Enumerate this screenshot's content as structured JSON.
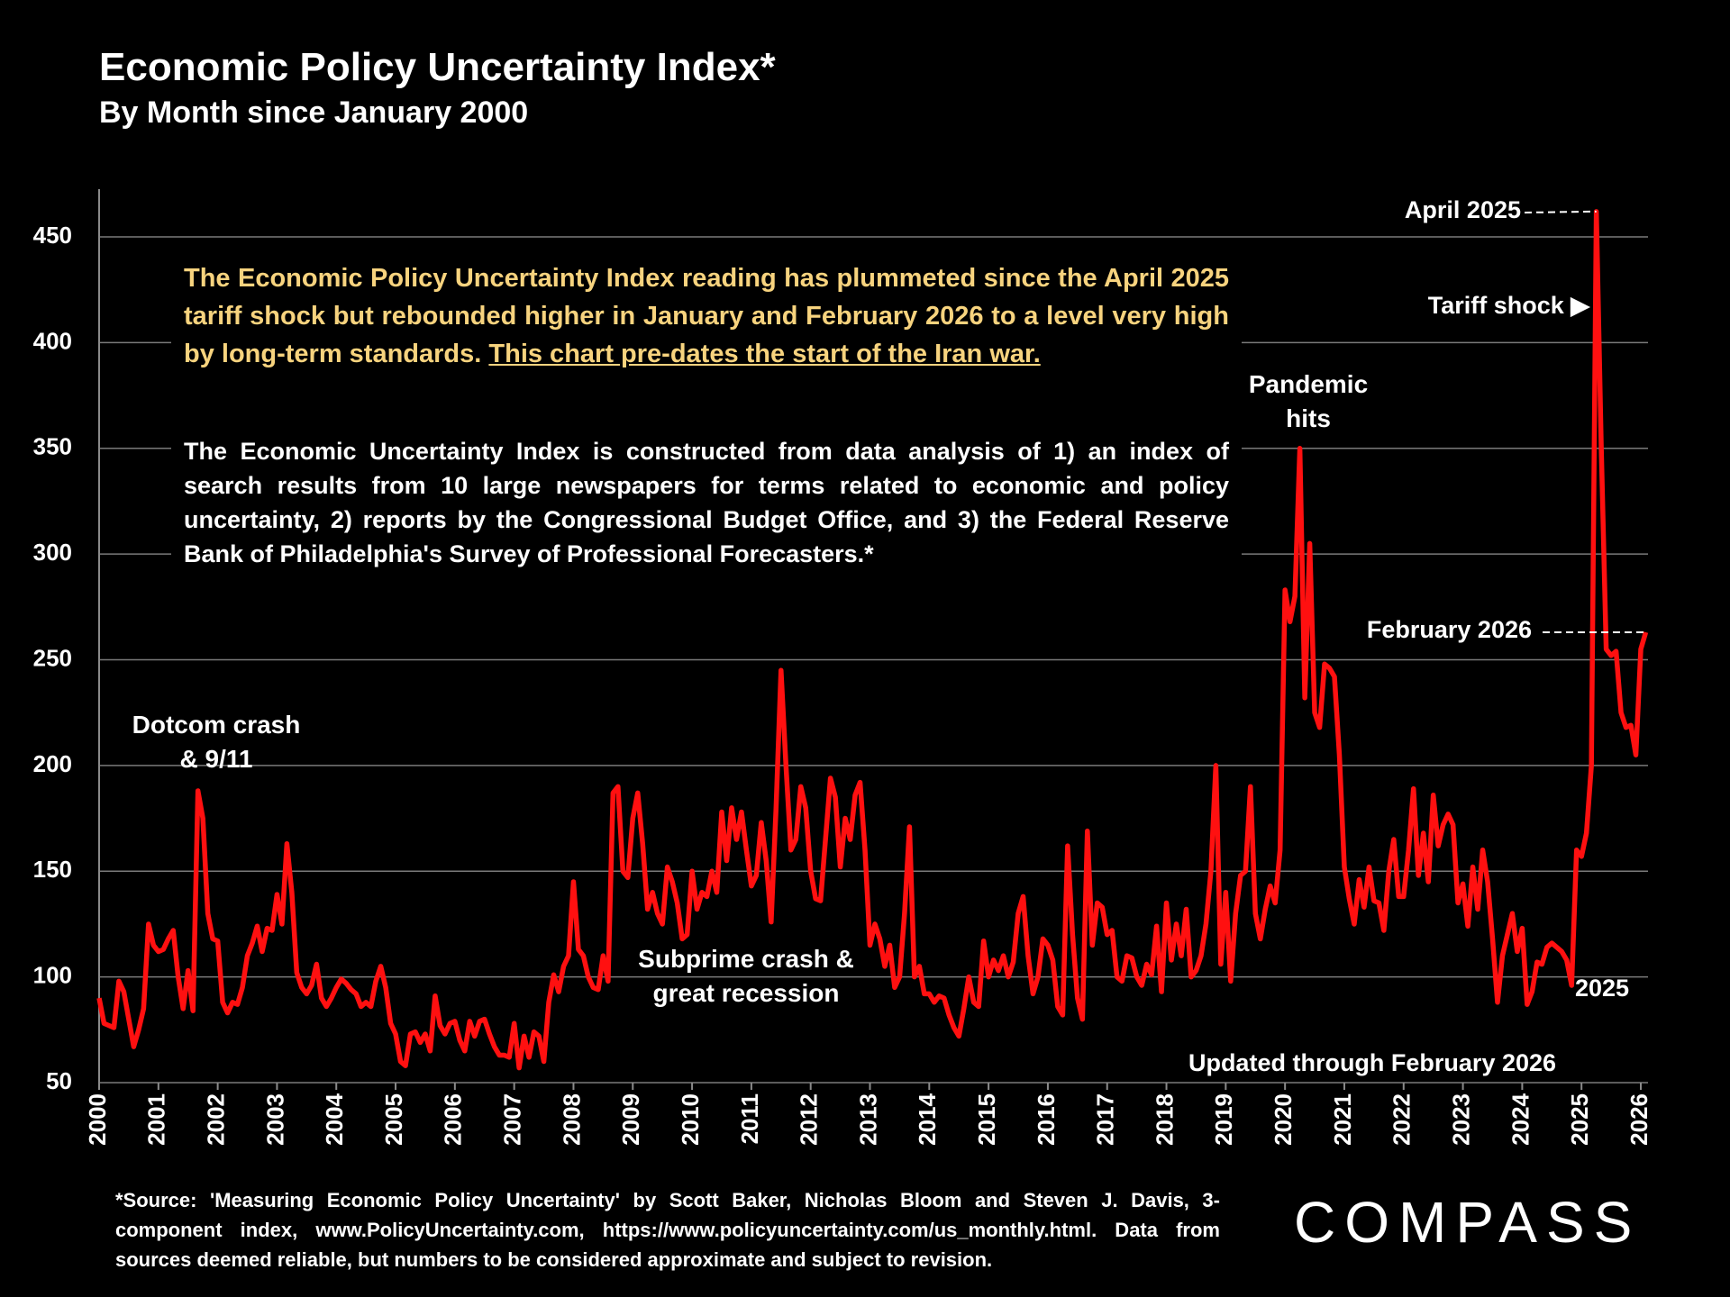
{
  "chart_data": {
    "type": "line",
    "title": "Economic Policy Uncertainty Index*",
    "subtitle": "By Month since January 2000",
    "color": "#ff1010",
    "grid": true,
    "ylim": [
      50,
      450
    ],
    "yticks": [
      50,
      100,
      150,
      200,
      250,
      300,
      350,
      400,
      450
    ],
    "categories": [
      "2000",
      null,
      null,
      null,
      null,
      null,
      null,
      null,
      null,
      null,
      null,
      null,
      "2001",
      null,
      null,
      null,
      null,
      null,
      null,
      null,
      null,
      null,
      null,
      null,
      "2002",
      null,
      null,
      null,
      null,
      null,
      null,
      null,
      null,
      null,
      null,
      null,
      "2003",
      null,
      null,
      null,
      null,
      null,
      null,
      null,
      null,
      null,
      null,
      null,
      "2004",
      null,
      null,
      null,
      null,
      null,
      null,
      null,
      null,
      null,
      null,
      null,
      "2005",
      null,
      null,
      null,
      null,
      null,
      null,
      null,
      null,
      null,
      null,
      null,
      "2006",
      null,
      null,
      null,
      null,
      null,
      null,
      null,
      null,
      null,
      null,
      null,
      "2007",
      null,
      null,
      null,
      null,
      null,
      null,
      null,
      null,
      null,
      null,
      null,
      "2008",
      null,
      null,
      null,
      null,
      null,
      null,
      null,
      null,
      null,
      null,
      null,
      "2009",
      null,
      null,
      null,
      null,
      null,
      null,
      null,
      null,
      null,
      null,
      null,
      "2010",
      null,
      null,
      null,
      null,
      null,
      null,
      null,
      null,
      null,
      null,
      null,
      "2011",
      null,
      null,
      null,
      null,
      null,
      null,
      null,
      null,
      null,
      null,
      null,
      "2012",
      null,
      null,
      null,
      null,
      null,
      null,
      null,
      null,
      null,
      null,
      null,
      "2013",
      null,
      null,
      null,
      null,
      null,
      null,
      null,
      null,
      null,
      null,
      null,
      "2014",
      null,
      null,
      null,
      null,
      null,
      null,
      null,
      null,
      null,
      null,
      null,
      "2015",
      null,
      null,
      null,
      null,
      null,
      null,
      null,
      null,
      null,
      null,
      null,
      "2016",
      null,
      null,
      null,
      null,
      null,
      null,
      null,
      null,
      null,
      null,
      null,
      "2017",
      null,
      null,
      null,
      null,
      null,
      null,
      null,
      null,
      null,
      null,
      null,
      "2018",
      null,
      null,
      null,
      null,
      null,
      null,
      null,
      null,
      null,
      null,
      null,
      "2019",
      null,
      null,
      null,
      null,
      null,
      null,
      null,
      null,
      null,
      null,
      null,
      "2020",
      null,
      null,
      null,
      null,
      null,
      null,
      null,
      null,
      null,
      null,
      null,
      "2021",
      null,
      null,
      null,
      null,
      null,
      null,
      null,
      null,
      null,
      null,
      null,
      "2022",
      null,
      null,
      null,
      null,
      null,
      null,
      null,
      null,
      null,
      null,
      null,
      "2023",
      null,
      null,
      null,
      null,
      null,
      null,
      null,
      null,
      null,
      null,
      null,
      "2024",
      null,
      null,
      null,
      null,
      null,
      null,
      null,
      null,
      null,
      null,
      null,
      "2025",
      null,
      null,
      null,
      null,
      null,
      null,
      null,
      null,
      null,
      null,
      null,
      "2026",
      null
    ],
    "values": [
      90,
      78,
      77,
      76,
      98,
      93,
      80,
      67,
      75,
      85,
      125,
      115,
      112,
      113,
      118,
      122,
      100,
      85,
      103,
      84,
      188,
      175,
      130,
      118,
      117,
      88,
      83,
      88,
      87,
      95,
      110,
      116,
      124,
      112,
      123,
      122,
      139,
      125,
      163,
      140,
      102,
      95,
      92,
      96,
      106,
      90,
      86,
      90,
      95,
      99,
      97,
      94,
      92,
      86,
      88,
      86,
      98,
      105,
      95,
      78,
      73,
      60,
      58,
      73,
      74,
      69,
      73,
      65,
      91,
      77,
      73,
      78,
      79,
      70,
      65,
      79,
      72,
      79,
      80,
      73,
      67,
      63,
      63,
      62,
      78,
      57,
      72,
      62,
      74,
      72,
      60,
      88,
      101,
      93,
      105,
      110,
      145,
      113,
      110,
      100,
      95,
      94,
      110,
      98,
      187,
      190,
      150,
      147,
      175,
      187,
      163,
      132,
      140,
      130,
      125,
      152,
      145,
      135,
      118,
      120,
      150,
      132,
      140,
      138,
      150,
      140,
      178,
      155,
      180,
      165,
      178,
      160,
      143,
      148,
      173,
      155,
      126,
      180,
      245,
      200,
      160,
      165,
      190,
      180,
      150,
      137,
      136,
      165,
      194,
      185,
      152,
      175,
      165,
      186,
      192,
      160,
      115,
      125,
      118,
      105,
      115,
      95,
      100,
      130,
      171,
      100,
      105,
      92,
      92,
      88,
      91,
      90,
      82,
      76,
      72,
      85,
      100,
      88,
      86,
      117,
      100,
      108,
      103,
      110,
      100,
      107,
      130,
      138,
      110,
      92,
      100,
      118,
      115,
      108,
      86,
      82,
      162,
      120,
      90,
      80,
      169,
      115,
      135,
      133,
      120,
      122,
      100,
      98,
      110,
      109,
      100,
      96,
      106,
      101,
      124,
      93,
      135,
      108,
      125,
      110,
      132,
      100,
      103,
      110,
      125,
      150,
      200,
      106,
      140,
      98,
      130,
      148,
      150,
      190,
      130,
      118,
      132,
      143,
      135,
      160,
      283,
      268,
      280,
      350,
      232,
      305,
      225,
      218,
      248,
      246,
      242,
      205,
      152,
      137,
      125,
      146,
      133,
      152,
      136,
      135,
      122,
      150,
      165,
      138,
      138,
      160,
      189,
      148,
      168,
      145,
      186,
      162,
      172,
      177,
      172,
      135,
      144,
      124,
      152,
      132,
      160,
      145,
      118,
      88,
      110,
      120,
      130,
      112,
      123,
      87,
      93,
      107,
      106,
      114,
      116,
      114,
      112,
      108,
      96,
      160,
      157,
      168,
      200,
      462,
      350,
      255,
      252,
      254,
      225,
      218,
      219,
      205,
      255,
      263
    ],
    "summary": "The Economic Policy Uncertainty Index reading has plummeted since the April 2025 tariff shock but rebounded higher in January and February 2026 to a level very high by long-term standards.",
    "summary_underlined": "This chart pre-dates the start of the Iran war.",
    "description": "The Economic Uncertainty Index is constructed from data analysis of 1) an index of search results from 10 large newspapers for terms related to economic and policy uncertainty, 2) reports by the Congressional Budget Office, and 3) the Federal Reserve Bank of Philadelphia's Survey of Professional Forecasters.*",
    "annotations": [
      "Dotcom crash\n& 9/11",
      "Subprime crash &\ngreat recession",
      "Pandemic\nhits",
      "April 2025",
      "Tariff shock ▶",
      "February 2026",
      "2025",
      "Updated through February 2026"
    ],
    "footnote": "*Source: 'Measuring Economic Policy Uncertainty' by Scott Baker, Nicholas Bloom and Steven J. Davis, 3-component index, www.PolicyUncertainty.com, https://www.policyuncertainty.com/us_monthly.html. Data from sources deemed reliable, but numbers to be considered approximate and subject to revision.",
    "logo": "COMPASS"
  }
}
